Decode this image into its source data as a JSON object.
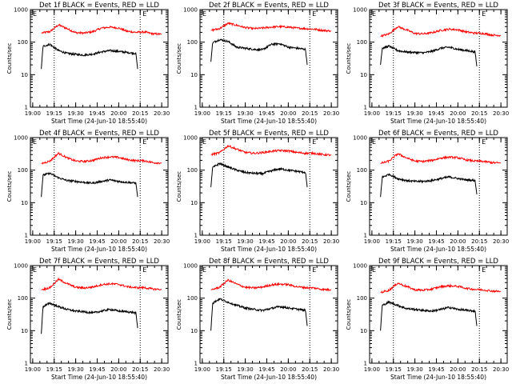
{
  "chart_data": [
    {
      "type": "line",
      "title": "Det 1f BLACK = Events, RED = LLD",
      "xlabel": "Start Time (24-Jun-10 18:55:40)",
      "ylabel": "Counts/sec",
      "yscale": "log",
      "ylim": [
        1,
        1000
      ],
      "xticks": [
        "19:00",
        "19:15",
        "19:30",
        "19:45",
        "20:00",
        "20:15",
        "20:30"
      ],
      "yticks": [
        "1",
        "10",
        "100",
        "1000"
      ],
      "flags": [
        "E",
        "E"
      ],
      "series": [
        {
          "color": "#ff0000",
          "x": [
            19.1,
            19.2,
            19.3,
            19.4,
            19.5,
            19.6,
            19.7,
            19.8,
            19.9,
            20.0,
            20.1,
            20.2,
            20.3,
            20.4,
            20.5
          ],
          "y": [
            190,
            210,
            340,
            260,
            195,
            190,
            210,
            270,
            290,
            270,
            215,
            200,
            205,
            180,
            175
          ]
        },
        {
          "color": "#000000",
          "x": [
            19.1,
            19.12,
            19.2,
            19.3,
            19.4,
            19.5,
            19.6,
            19.7,
            19.8,
            19.9,
            20.0,
            20.1,
            20.2,
            20.22
          ],
          "y": [
            15,
            75,
            85,
            55,
            45,
            42,
            40,
            43,
            50,
            55,
            52,
            48,
            45,
            15
          ]
        }
      ]
    },
    {
      "type": "line",
      "title": "Det 2f BLACK = Events, RED = LLD",
      "xlabel": "Start Time (24-Jun-10 18:55:40)",
      "ylabel": "Counts/sec",
      "yscale": "log",
      "ylim": [
        1,
        1000
      ],
      "xticks": [
        "19:00",
        "19:15",
        "19:30",
        "19:45",
        "20:00",
        "20:15",
        "20:30"
      ],
      "yticks": [
        "1",
        "10",
        "100",
        "1000"
      ],
      "flags": [
        "E",
        "E"
      ],
      "series": [
        {
          "color": "#ff0000",
          "x": [
            19.1,
            19.2,
            19.3,
            19.4,
            19.5,
            19.6,
            19.7,
            19.8,
            19.9,
            20.0,
            20.1,
            20.2,
            20.3,
            20.4,
            20.5
          ],
          "y": [
            230,
            260,
            380,
            330,
            280,
            260,
            270,
            290,
            300,
            290,
            270,
            260,
            250,
            230,
            220
          ]
        },
        {
          "color": "#000000",
          "x": [
            19.1,
            19.12,
            19.2,
            19.3,
            19.4,
            19.5,
            19.6,
            19.7,
            19.8,
            19.9,
            20.0,
            20.1,
            20.2,
            20.22
          ],
          "y": [
            25,
            95,
            120,
            105,
            70,
            65,
            60,
            58,
            85,
            90,
            70,
            65,
            60,
            20
          ]
        }
      ]
    },
    {
      "type": "line",
      "title": "Det 3f BLACK = Events, RED = LLD",
      "xlabel": "Start Time (24-Jun-10 18:55:40)",
      "ylabel": "Counts/sec",
      "yscale": "log",
      "ylim": [
        1,
        1000
      ],
      "xticks": [
        "19:00",
        "19:15",
        "19:30",
        "19:45",
        "20:00",
        "20:15",
        "20:30"
      ],
      "yticks": [
        "1",
        "10",
        "100",
        "1000"
      ],
      "flags": [
        "E",
        "E"
      ],
      "series": [
        {
          "color": "#ff0000",
          "x": [
            19.1,
            19.2,
            19.3,
            19.4,
            19.5,
            19.6,
            19.7,
            19.8,
            19.9,
            20.0,
            20.1,
            20.2,
            20.3,
            20.4,
            20.5
          ],
          "y": [
            150,
            180,
            300,
            240,
            185,
            180,
            195,
            230,
            250,
            240,
            205,
            190,
            185,
            165,
            160
          ]
        },
        {
          "color": "#000000",
          "x": [
            19.1,
            19.12,
            19.2,
            19.3,
            19.4,
            19.5,
            19.6,
            19.7,
            19.8,
            19.9,
            20.0,
            20.1,
            20.2,
            20.22
          ],
          "y": [
            20,
            65,
            75,
            55,
            50,
            48,
            47,
            52,
            65,
            70,
            60,
            55,
            50,
            18
          ]
        }
      ]
    },
    {
      "type": "line",
      "title": "Det 4f BLACK = Events, RED = LLD",
      "xlabel": "Start Time (24-Jun-10 18:55:40)",
      "ylabel": "Counts/sec",
      "yscale": "log",
      "ylim": [
        1,
        1000
      ],
      "xticks": [
        "19:00",
        "19:15",
        "19:30",
        "19:45",
        "20:00",
        "20:15",
        "20:30"
      ],
      "yticks": [
        "1",
        "10",
        "100",
        "1000"
      ],
      "flags": [
        "E",
        "E"
      ],
      "series": [
        {
          "color": "#ff0000",
          "x": [
            19.1,
            19.2,
            19.3,
            19.4,
            19.5,
            19.6,
            19.7,
            19.8,
            19.9,
            20.0,
            20.1,
            20.2,
            20.3,
            20.4,
            20.5
          ],
          "y": [
            160,
            190,
            330,
            240,
            190,
            185,
            200,
            240,
            255,
            245,
            210,
            195,
            195,
            170,
            165
          ]
        },
        {
          "color": "#000000",
          "x": [
            19.1,
            19.12,
            19.2,
            19.3,
            19.4,
            19.5,
            19.6,
            19.7,
            19.8,
            19.9,
            20.0,
            20.1,
            20.2,
            20.22
          ],
          "y": [
            15,
            70,
            80,
            58,
            48,
            45,
            42,
            40,
            45,
            50,
            45,
            42,
            40,
            15
          ]
        }
      ]
    },
    {
      "type": "line",
      "title": "Det 5f BLACK = Events, RED = LLD",
      "xlabel": "Start Time (24-Jun-10 18:55:40)",
      "ylabel": "Counts/sec",
      "yscale": "log",
      "ylim": [
        1,
        1000
      ],
      "xticks": [
        "19:00",
        "19:15",
        "19:30",
        "19:45",
        "20:00",
        "20:15",
        "20:30"
      ],
      "yticks": [
        "1",
        "10",
        "100",
        "1000"
      ],
      "flags": [
        "E",
        "E"
      ],
      "series": [
        {
          "color": "#ff0000",
          "x": [
            19.1,
            19.2,
            19.3,
            19.4,
            19.5,
            19.6,
            19.7,
            19.8,
            19.9,
            20.0,
            20.1,
            20.2,
            20.3,
            20.4,
            20.5
          ],
          "y": [
            300,
            340,
            560,
            440,
            350,
            330,
            345,
            380,
            400,
            390,
            350,
            330,
            330,
            300,
            290
          ]
        },
        {
          "color": "#000000",
          "x": [
            19.1,
            19.12,
            19.2,
            19.3,
            19.4,
            19.5,
            19.6,
            19.7,
            19.8,
            19.9,
            20.0,
            20.1,
            20.2,
            20.22
          ],
          "y": [
            30,
            120,
            160,
            125,
            100,
            85,
            80,
            78,
            95,
            110,
            100,
            92,
            85,
            30
          ]
        }
      ]
    },
    {
      "type": "line",
      "title": "Det 6f BLACK = Events, RED = LLD",
      "xlabel": "Start Time (24-Jun-10 18:55:40)",
      "ylabel": "Counts/sec",
      "yscale": "log",
      "ylim": [
        1,
        1000
      ],
      "xticks": [
        "19:00",
        "19:15",
        "19:30",
        "19:45",
        "20:00",
        "20:15",
        "20:30"
      ],
      "yticks": [
        "1",
        "10",
        "100",
        "1000"
      ],
      "flags": [
        "E",
        "E"
      ],
      "series": [
        {
          "color": "#ff0000",
          "x": [
            19.1,
            19.2,
            19.3,
            19.4,
            19.5,
            19.6,
            19.7,
            19.8,
            19.9,
            20.0,
            20.1,
            20.2,
            20.3,
            20.4,
            20.5
          ],
          "y": [
            160,
            190,
            320,
            240,
            190,
            185,
            200,
            235,
            250,
            240,
            205,
            190,
            185,
            170,
            165
          ]
        },
        {
          "color": "#000000",
          "x": [
            19.1,
            19.12,
            19.2,
            19.3,
            19.4,
            19.5,
            19.6,
            19.7,
            19.8,
            19.9,
            20.0,
            20.1,
            20.2,
            20.22
          ],
          "y": [
            15,
            60,
            75,
            55,
            48,
            45,
            45,
            48,
            55,
            62,
            55,
            50,
            48,
            18
          ]
        }
      ]
    },
    {
      "type": "line",
      "title": "Det 7f BLACK = Events, RED = LLD",
      "xlabel": "Start Time (24-Jun-10 18:55:40)",
      "ylabel": "Counts/sec",
      "yscale": "log",
      "ylim": [
        1,
        1000
      ],
      "xticks": [
        "19:00",
        "19:15",
        "19:30",
        "19:45",
        "20:00",
        "20:15",
        "20:30"
      ],
      "yticks": [
        "1",
        "10",
        "100",
        "1000"
      ],
      "flags": [
        "E",
        "E"
      ],
      "series": [
        {
          "color": "#ff0000",
          "x": [
            19.1,
            19.2,
            19.3,
            19.4,
            19.5,
            19.6,
            19.7,
            19.8,
            19.9,
            20.0,
            20.1,
            20.2,
            20.3,
            20.4,
            20.5
          ],
          "y": [
            180,
            210,
            380,
            280,
            215,
            205,
            220,
            260,
            275,
            265,
            225,
            210,
            210,
            190,
            185
          ]
        },
        {
          "color": "#000000",
          "x": [
            19.1,
            19.12,
            19.2,
            19.3,
            19.4,
            19.5,
            19.6,
            19.7,
            19.8,
            19.9,
            20.0,
            20.1,
            20.2,
            20.22
          ],
          "y": [
            8,
            55,
            70,
            55,
            45,
            40,
            38,
            35,
            40,
            45,
            40,
            38,
            35,
            12
          ]
        }
      ]
    },
    {
      "type": "line",
      "title": "Det 8f BLACK = Events, RED = LLD",
      "xlabel": "Start Time (24-Jun-10 18:55:40)",
      "ylabel": "Counts/sec",
      "yscale": "log",
      "ylim": [
        1,
        1000
      ],
      "xticks": [
        "19:00",
        "19:15",
        "19:30",
        "19:45",
        "20:00",
        "20:15",
        "20:30"
      ],
      "yticks": [
        "1",
        "10",
        "100",
        "1000"
      ],
      "flags": [
        "E",
        "E"
      ],
      "series": [
        {
          "color": "#ff0000",
          "x": [
            19.1,
            19.2,
            19.3,
            19.4,
            19.5,
            19.6,
            19.7,
            19.8,
            19.9,
            20.0,
            20.1,
            20.2,
            20.3,
            20.4,
            20.5
          ],
          "y": [
            180,
            215,
            360,
            270,
            215,
            205,
            220,
            255,
            270,
            260,
            225,
            210,
            205,
            185,
            180
          ]
        },
        {
          "color": "#000000",
          "x": [
            19.1,
            19.12,
            19.2,
            19.3,
            19.4,
            19.5,
            19.6,
            19.7,
            19.8,
            19.9,
            20.0,
            20.1,
            20.2,
            20.22
          ],
          "y": [
            10,
            70,
            95,
            75,
            60,
            50,
            45,
            42,
            48,
            55,
            50,
            46,
            42,
            14
          ]
        }
      ]
    },
    {
      "type": "line",
      "title": "Det 9f BLACK = Events, RED = LLD",
      "xlabel": "Start Time (24-Jun-10 18:55:40)",
      "ylabel": "Counts/sec",
      "yscale": "log",
      "ylim": [
        1,
        1000
      ],
      "xticks": [
        "19:00",
        "19:15",
        "19:30",
        "19:45",
        "20:00",
        "20:15",
        "20:30"
      ],
      "yticks": [
        "1",
        "10",
        "100",
        "1000"
      ],
      "flags": [
        "E",
        "E"
      ],
      "series": [
        {
          "color": "#ff0000",
          "x": [
            19.1,
            19.2,
            19.3,
            19.4,
            19.5,
            19.6,
            19.7,
            19.8,
            19.9,
            20.0,
            20.1,
            20.2,
            20.3,
            20.4,
            20.5
          ],
          "y": [
            150,
            175,
            290,
            230,
            180,
            175,
            190,
            225,
            240,
            230,
            200,
            185,
            180,
            165,
            160
          ]
        },
        {
          "color": "#000000",
          "x": [
            19.1,
            19.12,
            19.2,
            19.3,
            19.4,
            19.5,
            19.6,
            19.7,
            19.8,
            19.9,
            20.0,
            20.1,
            20.2,
            20.22
          ],
          "y": [
            10,
            60,
            75,
            60,
            48,
            45,
            42,
            40,
            45,
            52,
            45,
            42,
            40,
            14
          ]
        }
      ]
    }
  ]
}
